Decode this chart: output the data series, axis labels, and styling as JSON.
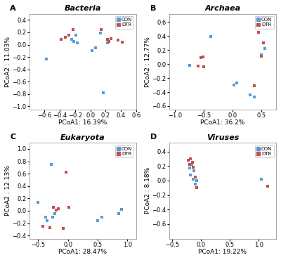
{
  "panels": [
    {
      "label": "A",
      "title": "Bacteria",
      "xlabel": "PCoA1: 16.39%",
      "ylabel": "PCoA2 : 11.03%",
      "xlim": [
        -0.8,
        0.6
      ],
      "ylim": [
        -1.05,
        0.5
      ],
      "xticks": [
        -0.6,
        -0.4,
        -0.2,
        0.0,
        0.2,
        0.4,
        0.6
      ],
      "yticks": [
        -1.0,
        -0.8,
        -0.6,
        -0.4,
        -0.2,
        0.0,
        0.2,
        0.4
      ],
      "con_x": [
        -0.58,
        -0.25,
        -0.22,
        -0.19,
        -0.17,
        0.02,
        0.07,
        0.13,
        0.17,
        0.22
      ],
      "con_y": [
        -0.23,
        0.09,
        0.05,
        0.15,
        0.03,
        -0.1,
        -0.05,
        0.19,
        -0.78,
        0.03
      ],
      "dtr_x": [
        -0.38,
        -0.33,
        -0.28,
        -0.23,
        0.14,
        0.22,
        0.24,
        0.27,
        0.36,
        0.42
      ],
      "dtr_y": [
        0.09,
        0.12,
        0.15,
        0.25,
        0.24,
        0.09,
        0.05,
        0.1,
        0.07,
        0.04
      ]
    },
    {
      "label": "B",
      "title": "Archaea",
      "xlabel": "PCoA1: 36.2%",
      "ylabel": "PCoA2 : 12.77%",
      "xlim": [
        -1.1,
        0.75
      ],
      "ylim": [
        -0.65,
        0.72
      ],
      "xticks": [
        -1.0,
        -0.5,
        0.0,
        0.5
      ],
      "yticks": [
        -0.6,
        -0.4,
        -0.2,
        0.0,
        0.2,
        0.4,
        0.6
      ],
      "con_x": [
        -0.75,
        -0.38,
        0.02,
        0.07,
        0.3,
        0.37,
        0.5,
        0.56
      ],
      "con_y": [
        -0.02,
        0.39,
        -0.3,
        -0.27,
        -0.44,
        -0.47,
        0.13,
        0.22
      ],
      "dtr_x": [
        -0.6,
        -0.55,
        -0.52,
        -0.5,
        0.37,
        0.45,
        0.5,
        0.53
      ],
      "dtr_y": [
        -0.03,
        0.09,
        0.1,
        -0.04,
        -0.31,
        0.45,
        0.11,
        0.3
      ]
    },
    {
      "label": "C",
      "title": "Eukaryota",
      "xlabel": "PCoA1: 28.47%",
      "ylabel": "PCoA2 : 12.13%",
      "xlim": [
        -0.65,
        1.15
      ],
      "ylim": [
        -0.45,
        1.1
      ],
      "xticks": [
        -0.5,
        0.0,
        0.5,
        1.0
      ],
      "yticks": [
        -0.4,
        -0.2,
        0.0,
        0.2,
        0.4,
        0.6,
        0.8,
        1.0
      ],
      "con_x": [
        -0.5,
        -0.38,
        -0.35,
        -0.28,
        -0.26,
        -0.22,
        0.5,
        0.57,
        0.85,
        0.9
      ],
      "con_y": [
        0.14,
        -0.1,
        -0.16,
        0.75,
        -0.1,
        -0.05,
        -0.16,
        -0.1,
        -0.05,
        0.02
      ],
      "dtr_x": [
        -0.42,
        -0.3,
        -0.24,
        -0.2,
        -0.16,
        -0.08,
        -0.03,
        0.02
      ],
      "dtr_y": [
        -0.25,
        -0.27,
        0.06,
        0.01,
        0.03,
        -0.28,
        0.62,
        0.06
      ]
    },
    {
      "label": "D",
      "title": "Viruses",
      "xlabel": "PCoA1: 19.22%",
      "ylabel": "PCoA2 : 8.18%",
      "xlim": [
        -0.55,
        1.3
      ],
      "ylim": [
        -0.8,
        0.52
      ],
      "xticks": [
        -0.5,
        0.0,
        0.5,
        1.0
      ],
      "yticks": [
        -0.6,
        -0.4,
        -0.2,
        0.0,
        0.2,
        0.4
      ],
      "con_x": [
        -0.2,
        -0.18,
        -0.16,
        -0.14,
        -0.12,
        -0.1,
        -0.08,
        1.05
      ],
      "con_y": [
        0.17,
        0.08,
        0.22,
        0.02,
        0.13,
        -0.05,
        0.0,
        0.02
      ],
      "dtr_x": [
        -0.22,
        -0.2,
        -0.18,
        -0.15,
        -0.13,
        -0.1,
        -0.07,
        1.15
      ],
      "dtr_y": [
        0.28,
        0.22,
        0.3,
        0.25,
        0.18,
        0.05,
        -0.1,
        -0.08
      ]
    }
  ],
  "con_color": "#5B9BD5",
  "dtr_color": "#C0504D",
  "marker_size": 10,
  "marker": "s",
  "bg_color": "#ffffff",
  "title_fontsize": 8,
  "label_fontsize": 6.5,
  "tick_fontsize": 6,
  "panel_label_fontsize": 8
}
